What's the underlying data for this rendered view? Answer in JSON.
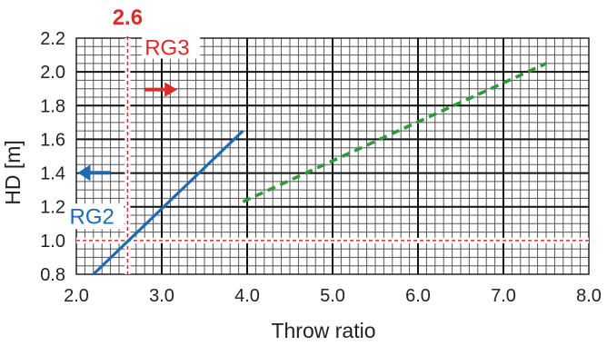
{
  "chart_data": {
    "type": "line",
    "xlabel": "Throw ratio",
    "ylabel": "HD [m]",
    "xlim": [
      2.0,
      8.0
    ],
    "ylim": [
      0.8,
      2.2
    ],
    "x_ticks": [
      "2.0",
      "3.0",
      "4.0",
      "5.0",
      "6.0",
      "7.0",
      "8.0"
    ],
    "y_ticks": [
      "0.8",
      "1.0",
      "1.2",
      "1.4",
      "1.6",
      "1.8",
      "2.0",
      "2.2"
    ],
    "grid": true,
    "series": [
      {
        "style": "solid",
        "color": "#1e6ab4",
        "points": [
          [
            2.2,
            0.8
          ],
          [
            3.95,
            1.65
          ]
        ]
      },
      {
        "style": "dashed",
        "color": "#2e9a3c",
        "points": [
          [
            3.95,
            1.23
          ],
          [
            7.5,
            2.05
          ]
        ]
      }
    ],
    "reference_lines": [
      {
        "axis": "x",
        "value": 2.6,
        "label": "2.6",
        "color": "#e02a2a"
      },
      {
        "axis": "y",
        "value": 1.0,
        "color": "#e02a2a"
      }
    ],
    "annotations": [
      {
        "text": "RG3",
        "color": "#e02a2a",
        "arrow": "right",
        "x": 2.8,
        "y": 2.1
      },
      {
        "text": "RG2",
        "color": "#1e6ab4",
        "arrow": "left",
        "x": 2.25,
        "y": 1.1
      }
    ]
  }
}
